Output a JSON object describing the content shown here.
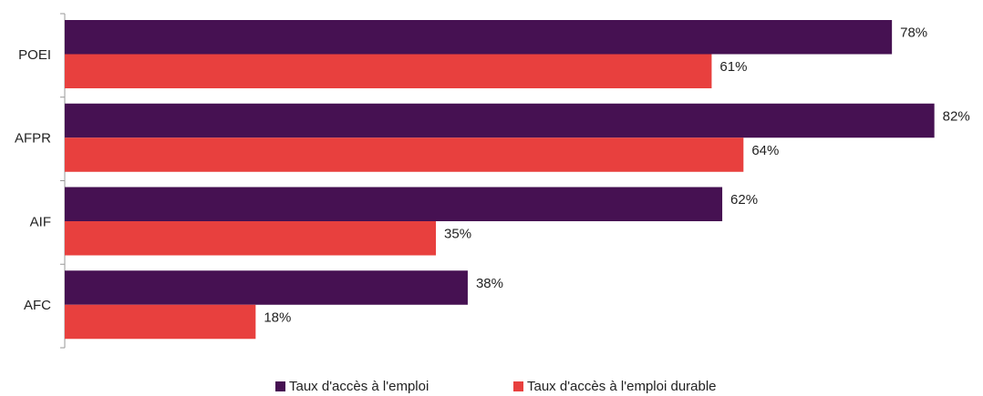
{
  "chart_data": {
    "type": "bar",
    "orientation": "horizontal",
    "categories": [
      "POEI",
      "AFPR",
      "AIF",
      "AFC"
    ],
    "series": [
      {
        "name": "Taux d'accès à l'emploi",
        "color": "#461152",
        "values": [
          78,
          82,
          62,
          38
        ],
        "value_labels": [
          "78%",
          "82%",
          "62%",
          "38%"
        ]
      },
      {
        "name": "Taux d'accès à l'emploi durable",
        "color": "#e8403e",
        "values": [
          61,
          64,
          35,
          18
        ],
        "value_labels": [
          "61%",
          "64%",
          "35%",
          "18%"
        ]
      }
    ],
    "legend": "bottom"
  }
}
